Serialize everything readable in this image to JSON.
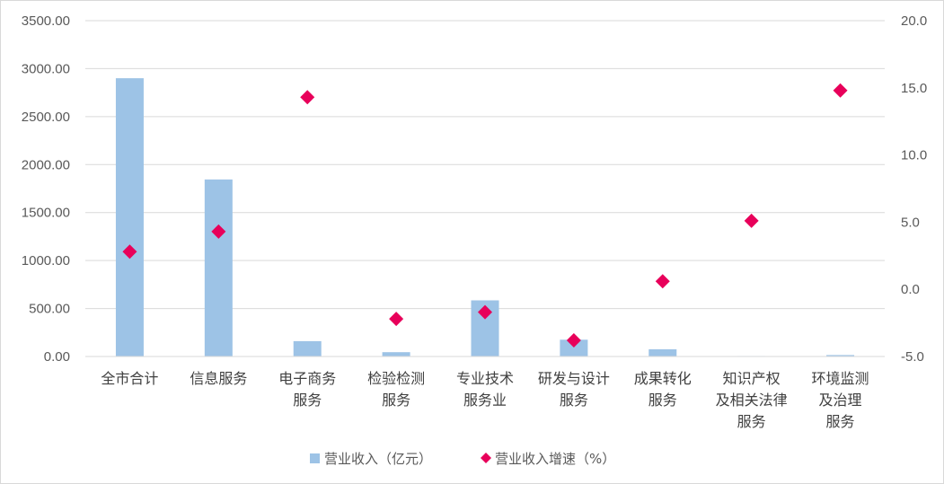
{
  "chart_data": {
    "type": "bar",
    "categories": [
      [
        "全市合计"
      ],
      [
        "信息服务"
      ],
      [
        "电子商务",
        "服务"
      ],
      [
        "检验检测",
        "服务"
      ],
      [
        "专业技术",
        "服务业"
      ],
      [
        "研发与设计",
        "服务"
      ],
      [
        "成果转化",
        "服务"
      ],
      [
        "知识产权",
        "及相关法律",
        "服务"
      ],
      [
        "环境监测",
        "及治理",
        "服务"
      ]
    ],
    "series": [
      {
        "name": "营业收入（亿元）",
        "type": "bar",
        "axis": "left",
        "color": "#9dc3e6",
        "values": [
          2900,
          1845,
          160,
          45,
          585,
          175,
          75,
          5,
          15
        ]
      },
      {
        "name": "营业收入增速（%）",
        "type": "scatter",
        "marker": "diamond",
        "axis": "right",
        "color": "#e8005a",
        "values": [
          2.8,
          4.3,
          14.3,
          -2.2,
          -1.7,
          -3.8,
          0.6,
          5.1,
          14.8
        ]
      }
    ],
    "y_left": {
      "min": 0,
      "max": 3500,
      "ticks": [
        "0.00",
        "500.00",
        "1000.00",
        "1500.00",
        "2000.00",
        "2500.00",
        "3000.00",
        "3500.00"
      ]
    },
    "y_right": {
      "min": -5,
      "max": 20,
      "ticks": [
        "-5.0",
        "0.0",
        "5.0",
        "10.0",
        "15.0",
        "20.0"
      ]
    },
    "grid": true,
    "legend": "bottom"
  }
}
